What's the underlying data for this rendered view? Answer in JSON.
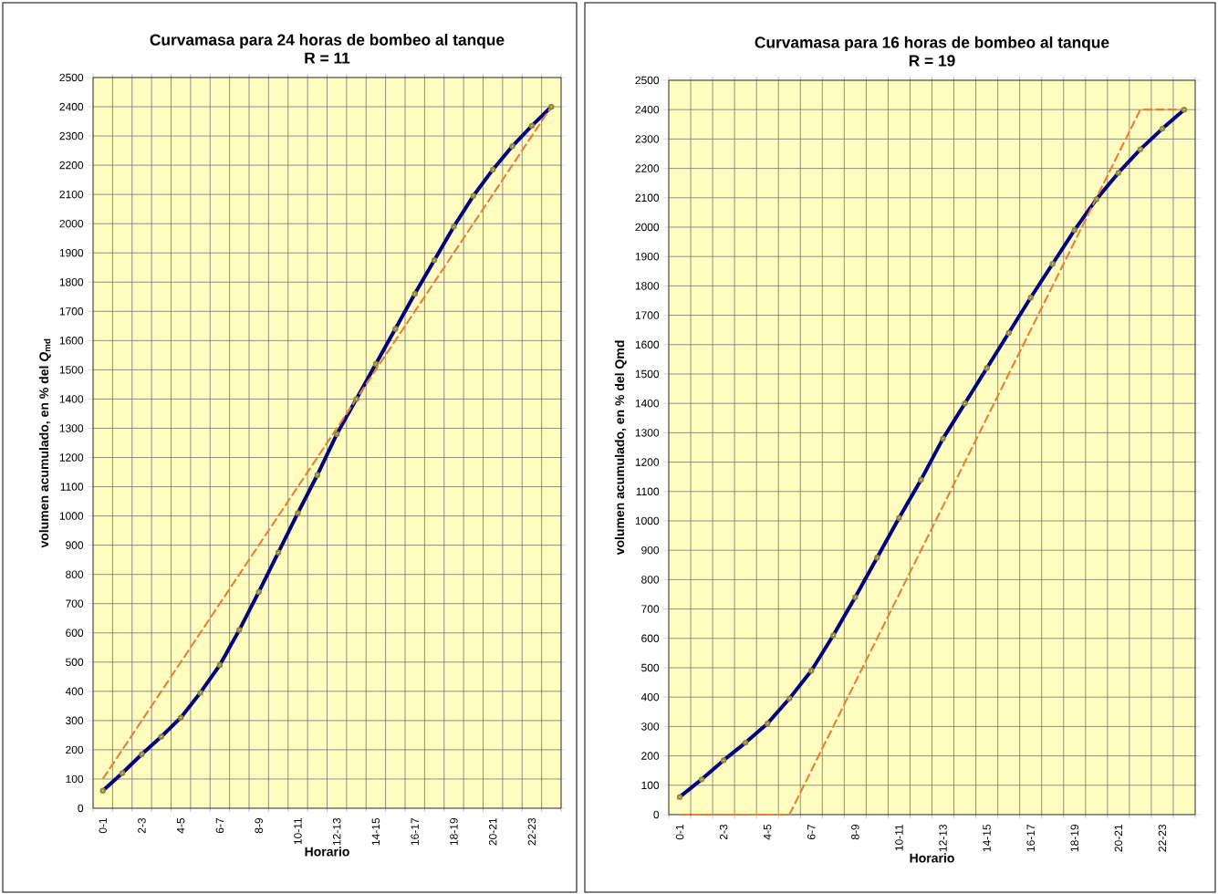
{
  "chart_data": [
    {
      "type": "line",
      "title": "Curvamasa para 24 horas de bombeo al tanque",
      "subtitle": "R = 11",
      "xlabel": "Horario",
      "ylabel": "volumen acumulado,  en % del *Q*$_{md}$",
      "categories": [
        "0-1",
        null,
        "2-3",
        null,
        "4-5",
        null,
        "6-7",
        null,
        "8-9",
        null,
        "10-11",
        null,
        "12-13",
        null,
        "14-15",
        null,
        "16-17",
        null,
        "18-19",
        null,
        "20-21",
        null,
        "22-23",
        null
      ],
      "series": [
        {
          "color": "#000080",
          "marker": "circle",
          "line_style": "solid",
          "values": [
            60,
            120,
            185,
            245,
            310,
            395,
            490,
            610,
            740,
            875,
            1010,
            1140,
            1280,
            1400,
            1520,
            1640,
            1760,
            1875,
            1990,
            2095,
            2185,
            2265,
            2335,
            2400
          ]
        },
        {
          "color": "#e8803a",
          "marker": "none",
          "line_style": "dashed",
          "values": [
            100,
            200,
            300,
            400,
            500,
            600,
            700,
            800,
            900,
            1000,
            1100,
            1200,
            1300,
            1400,
            1500,
            1600,
            1700,
            1800,
            1900,
            2000,
            2100,
            2200,
            2300,
            2400
          ]
        }
      ],
      "ylim": [
        0,
        2500
      ],
      "yticks": [
        0,
        100,
        200,
        300,
        400,
        500,
        600,
        700,
        800,
        900,
        1000,
        1100,
        1200,
        1300,
        1400,
        1500,
        1600,
        1700,
        1800,
        1900,
        2000,
        2100,
        2200,
        2300,
        2400,
        2500
      ],
      "grid": true
    },
    {
      "type": "line",
      "title": "Curvamasa para 16 horas de bombeo al tanque",
      "subtitle": "R = 19",
      "xlabel": "Horario",
      "ylabel": "volumen acumulado,  en % del Qmd",
      "categories": [
        "0-1",
        null,
        "2-3",
        null,
        "4-5",
        null,
        "6-7",
        null,
        "8-9",
        null,
        "10-11",
        null,
        "12-13",
        null,
        "14-15",
        null,
        "16-17",
        null,
        "18-19",
        null,
        "20-21",
        null,
        "22-23",
        null
      ],
      "series": [
        {
          "color": "#000080",
          "marker": "circle",
          "line_style": "solid",
          "values": [
            60,
            120,
            185,
            245,
            310,
            395,
            490,
            610,
            740,
            875,
            1010,
            1140,
            1280,
            1400,
            1520,
            1640,
            1760,
            1875,
            1990,
            2095,
            2185,
            2265,
            2335,
            2400
          ]
        },
        {
          "color": "#e8803a",
          "marker": "none",
          "line_style": "dashed",
          "values": [
            0,
            0,
            0,
            0,
            0,
            0,
            150,
            300,
            450,
            600,
            750,
            900,
            1050,
            1200,
            1350,
            1500,
            1650,
            1800,
            1950,
            2100,
            2250,
            2400,
            2400,
            2400
          ]
        }
      ],
      "ylim": [
        0,
        2500
      ],
      "yticks": [
        0,
        100,
        200,
        300,
        400,
        500,
        600,
        700,
        800,
        900,
        1000,
        1100,
        1200,
        1300,
        1400,
        1500,
        1600,
        1700,
        1800,
        1900,
        2000,
        2100,
        2200,
        2300,
        2400,
        2500
      ],
      "grid": true
    }
  ]
}
